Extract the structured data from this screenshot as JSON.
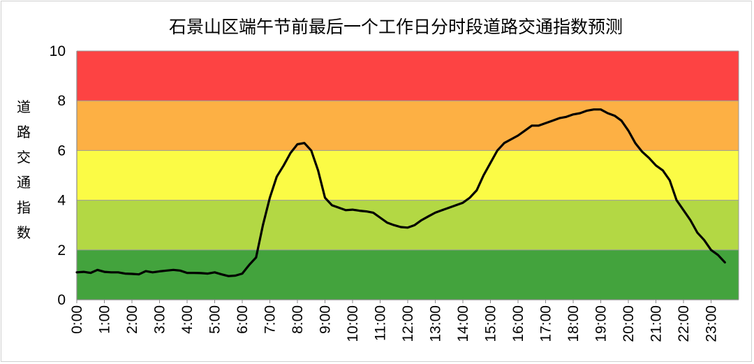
{
  "chart_data": {
    "type": "line",
    "title": "石景山区端午节前最后一个工作日分时段道路交通指数预测",
    "ylabel": "道路交通指数",
    "xlabel": "",
    "ylim": [
      0,
      10
    ],
    "y_ticks": [
      "0",
      "2",
      "4",
      "6",
      "8",
      "10"
    ],
    "x_tick_labels": [
      "0:00",
      "1:00",
      "2:00",
      "3:00",
      "4:00",
      "5:00",
      "6:00",
      "7:00",
      "8:00",
      "9:00",
      "10:00",
      "11:00",
      "12:00",
      "13:00",
      "14:00",
      "15:00",
      "16:00",
      "17:00",
      "18:00",
      "19:00",
      "20:00",
      "21:00",
      "22:00",
      "23:00"
    ],
    "bands": [
      {
        "from": 0,
        "to": 2,
        "color": "#43a33d"
      },
      {
        "from": 2,
        "to": 4,
        "color": "#b3d844"
      },
      {
        "from": 4,
        "to": 6,
        "color": "#fbfb45"
      },
      {
        "from": 6,
        "to": 8,
        "color": "#fdb044"
      },
      {
        "from": 8,
        "to": 10,
        "color": "#fd4343"
      }
    ],
    "grid": false,
    "line_color": "#000000",
    "series": [
      {
        "x_step_hours": 0.25,
        "values": [
          1.1,
          1.12,
          1.08,
          1.2,
          1.12,
          1.1,
          1.1,
          1.05,
          1.04,
          1.02,
          1.15,
          1.1,
          1.14,
          1.17,
          1.2,
          1.17,
          1.08,
          1.08,
          1.07,
          1.05,
          1.1,
          1.02,
          0.95,
          0.97,
          1.05,
          1.4,
          1.7,
          3.0,
          4.1,
          4.95,
          5.4,
          5.9,
          6.25,
          6.3,
          6.0,
          5.2,
          4.1,
          3.8,
          3.7,
          3.6,
          3.62,
          3.58,
          3.55,
          3.5,
          3.3,
          3.1,
          3.0,
          2.92,
          2.9,
          3.0,
          3.2,
          3.35,
          3.5,
          3.6,
          3.7,
          3.8,
          3.9,
          4.1,
          4.4,
          5.0,
          5.5,
          6.0,
          6.3,
          6.45,
          6.6,
          6.8,
          7.0,
          7.0,
          7.1,
          7.2,
          7.3,
          7.35,
          7.45,
          7.5,
          7.6,
          7.65,
          7.65,
          7.5,
          7.4,
          7.2,
          6.8,
          6.3,
          5.95,
          5.7,
          5.4,
          5.2,
          4.8,
          4.0,
          3.6,
          3.2,
          2.7,
          2.4,
          2.0,
          1.8,
          1.5
        ]
      }
    ]
  }
}
